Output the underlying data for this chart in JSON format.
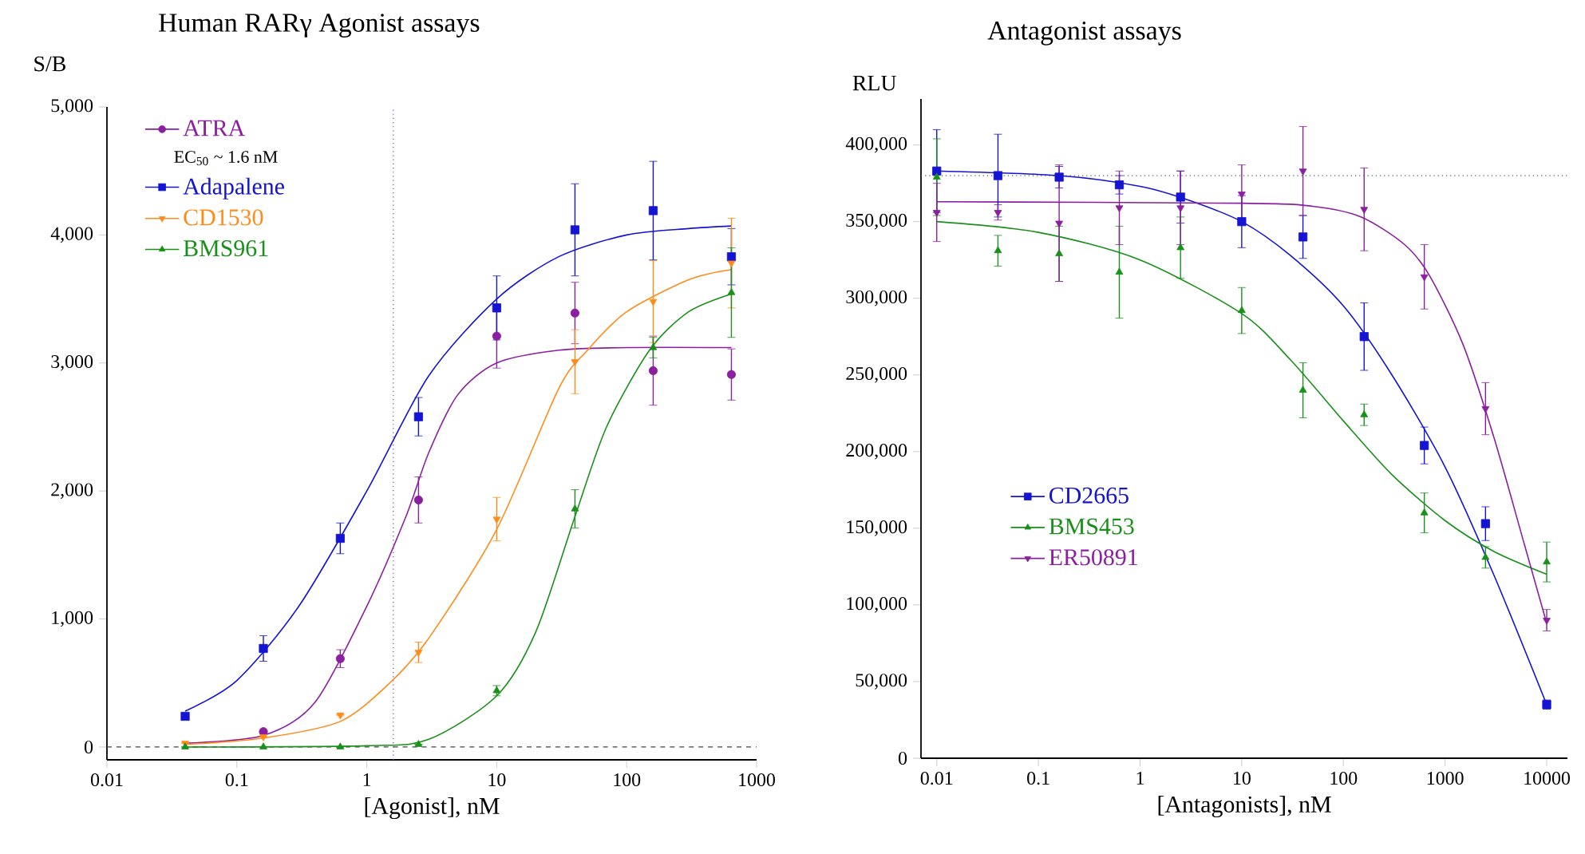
{
  "chart_data": [
    {
      "type": "scatter",
      "title": "Human RARγ Agonist assays",
      "xlabel": "[Agonist], nM",
      "ylabel": "S/B",
      "log": "x",
      "legend": "top left",
      "xlim": [
        0.01,
        1000
      ],
      "xticks": [
        0.01,
        0.1,
        1,
        10,
        100,
        1000
      ],
      "ylim": [
        -100,
        5000
      ],
      "yticks": [
        0,
        {
          "value": 1000,
          "label": "1,000"
        },
        {
          "value": 2000,
          "label": "2,000"
        },
        {
          "value": 3000,
          "label": "3,000"
        },
        {
          "value": 4000,
          "label": "4,000"
        },
        {
          "value": 5000,
          "label": "5,000"
        }
      ],
      "annotations": [
        "EC$_{50}$ ~ 1.6 nM"
      ],
      "ref_lines": [
        {
          "axis": "x",
          "value": 1.6,
          "color": "#8b3a9b",
          "line_style": "dotted"
        },
        {
          "axis": "y",
          "value": 0,
          "color": "#444444",
          "line_style": "dashed"
        }
      ],
      "series": [
        {
          "type": "line",
          "color": "#8b1fa0",
          "x": [
            0.04,
            0.16,
            0.4,
            1,
            2,
            3,
            5,
            10,
            30,
            100,
            640
          ],
          "values": [
            30,
            90,
            350,
            1100,
            1800,
            2300,
            2750,
            3000,
            3100,
            3120,
            3120
          ]
        },
        {
          "type": "line",
          "color": "#1414d2",
          "x": [
            0.04,
            0.1,
            0.3,
            1,
            3,
            10,
            30,
            100,
            300,
            640
          ],
          "values": [
            280,
            520,
            1100,
            2000,
            2900,
            3500,
            3830,
            4000,
            4050,
            4070
          ]
        },
        {
          "type": "line",
          "color": "#ff8c1a",
          "x": [
            0.04,
            0.16,
            0.625,
            1.5,
            3,
            10,
            30,
            50,
            100,
            300,
            640
          ],
          "values": [
            20,
            70,
            200,
            500,
            850,
            1700,
            2800,
            3100,
            3400,
            3650,
            3730
          ]
        },
        {
          "type": "line",
          "color": "#18901a",
          "x": [
            0.04,
            1,
            3,
            10,
            20,
            40,
            70,
            150,
            300,
            640
          ],
          "values": [
            0,
            10,
            60,
            400,
            900,
            1800,
            2500,
            3100,
            3400,
            3540
          ]
        },
        {
          "name": "ATRA",
          "color": "#8b1fa0",
          "marker": "circle",
          "x": [
            0.16,
            0.625,
            2.5,
            10,
            40,
            160,
            640
          ],
          "values": [
            120,
            690,
            1930,
            3210,
            3390,
            2940,
            2910
          ],
          "errors": [
            null,
            70,
            180,
            250,
            240,
            270,
            200
          ]
        },
        {
          "name": "Adapalene",
          "color": "#1414d2",
          "marker": "square",
          "x": [
            0.04,
            0.16,
            0.625,
            2.5,
            10,
            40,
            160,
            640
          ],
          "values": [
            240,
            770,
            1630,
            2580,
            3430,
            4040,
            4190,
            3830
          ],
          "errors": [
            null,
            100,
            120,
            150,
            250,
            360,
            385,
            220
          ]
        },
        {
          "name": "CD1530",
          "color": "#ff8c1a",
          "marker": "triangle-down",
          "x": [
            0.04,
            0.16,
            0.625,
            2.5,
            10,
            40,
            160,
            640
          ],
          "values": [
            30,
            80,
            250,
            740,
            1780,
            3010,
            3480,
            3780
          ],
          "errors": [
            null,
            null,
            null,
            80,
            170,
            250,
            320,
            350
          ]
        },
        {
          "name": "BMS961",
          "color": "#18901a",
          "marker": "triangle",
          "x": [
            0.04,
            0.16,
            0.625,
            2.5,
            10,
            40,
            160,
            640
          ],
          "values": [
            0,
            0,
            0,
            20,
            440,
            1860,
            3120,
            3550
          ],
          "errors": [
            null,
            null,
            null,
            null,
            40,
            150,
            80,
            350
          ]
        }
      ]
    },
    {
      "type": "scatter",
      "title": "Antagonist assays",
      "xlabel": "[Antagonists], nM",
      "ylabel": "RLU",
      "log": "x",
      "legend": "left",
      "xlim": [
        0.007,
        16000
      ],
      "xticks": [
        0.01,
        0.1,
        1,
        10,
        100,
        1000,
        10000
      ],
      "ylim": [
        0,
        430000
      ],
      "yticks": [
        0,
        {
          "value": 50000,
          "label": "50,000"
        },
        {
          "value": 100000,
          "label": "100,000"
        },
        {
          "value": 150000,
          "label": "150,000"
        },
        {
          "value": 200000,
          "label": "200,000"
        },
        {
          "value": 250000,
          "label": "250,000"
        },
        {
          "value": 300000,
          "label": "300,000"
        },
        {
          "value": 350000,
          "label": "350,000"
        },
        {
          "value": 400000,
          "label": "400,000"
        }
      ],
      "ref_lines": [
        {
          "axis": "y",
          "value": 380000,
          "color": "#555555",
          "line_style": "dotted"
        }
      ],
      "series": [
        {
          "type": "line",
          "color": "#1414d2",
          "x": [
            0.01,
            0.16,
            1,
            3,
            10,
            30,
            100,
            300,
            1000,
            3000,
            10000
          ],
          "values": [
            383000,
            380000,
            373000,
            364000,
            350000,
            328000,
            295000,
            250000,
            190000,
            120000,
            35000
          ]
        },
        {
          "type": "line",
          "color": "#18901a",
          "x": [
            0.01,
            0.1,
            1,
            10,
            30,
            100,
            300,
            1000,
            3000,
            10000
          ],
          "values": [
            350000,
            343000,
            325000,
            290000,
            260000,
            220000,
            185000,
            155000,
            135000,
            120000
          ]
        },
        {
          "type": "line",
          "color": "#8b1fa0",
          "x": [
            0.01,
            10,
            50,
            150,
            400,
            700,
            1500,
            3000,
            6000,
            10000
          ],
          "values": [
            363000,
            362000,
            360000,
            353000,
            335000,
            315000,
            270000,
            210000,
            140000,
            88000
          ]
        },
        {
          "name": "CD2665",
          "color": "#1414d2",
          "marker": "square",
          "x": [
            0.01,
            0.04,
            0.16,
            0.625,
            2.5,
            10,
            40,
            160,
            625,
            2500,
            10000
          ],
          "values": [
            383000,
            380000,
            379000,
            374000,
            366000,
            350000,
            340000,
            275000,
            204000,
            153000,
            35000
          ],
          "errors": [
            27000,
            27000,
            7000,
            6000,
            17000,
            17000,
            14000,
            22000,
            12000,
            11000,
            3000
          ]
        },
        {
          "name": "BMS453",
          "color": "#18901a",
          "marker": "triangle",
          "x": [
            0.01,
            0.04,
            0.16,
            0.625,
            2.5,
            10,
            40,
            160,
            625,
            2500,
            10000
          ],
          "values": [
            379000,
            331000,
            329000,
            317000,
            333000,
            292000,
            240000,
            224000,
            160000,
            131000,
            128000
          ],
          "errors": [
            25000,
            10000,
            18000,
            30000,
            20000,
            15000,
            18000,
            7000,
            13000,
            7000,
            13000
          ]
        },
        {
          "name": "ER50891",
          "color": "#8b1fa0",
          "marker": "triangle-down",
          "x": [
            0.01,
            0.04,
            0.16,
            0.625,
            2.5,
            10,
            40,
            160,
            625,
            2500,
            10000
          ],
          "values": [
            356000,
            356000,
            349000,
            359000,
            359000,
            368000,
            383000,
            358000,
            314000,
            228000,
            90000
          ],
          "errors": [
            19000,
            5000,
            38000,
            24000,
            24000,
            19000,
            29000,
            27000,
            21000,
            17000,
            7000
          ]
        }
      ]
    }
  ]
}
